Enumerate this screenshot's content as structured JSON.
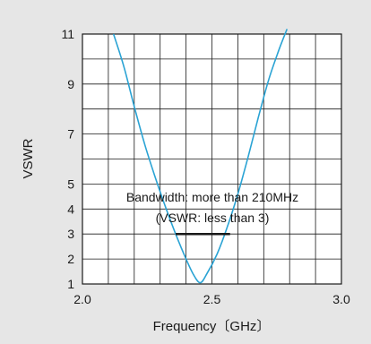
{
  "chart_data": {
    "type": "line",
    "xlabel": "Frequency〔GHz〕",
    "ylabel": "VSWR",
    "xlim": [
      2.0,
      3.0
    ],
    "ylim": [
      1,
      11
    ],
    "x_ticks": [
      "2.0",
      "2.5",
      "3.0"
    ],
    "y_ticks": [
      "1",
      "2",
      "3",
      "4",
      "5",
      "7",
      "9",
      "11"
    ],
    "grid": true,
    "series": [
      {
        "color": "#2aa3d4",
        "x": [
          2.12,
          2.16,
          2.2,
          2.24,
          2.28,
          2.32,
          2.36,
          2.4,
          2.43,
          2.455,
          2.48,
          2.52,
          2.56,
          2.6,
          2.64,
          2.68,
          2.72,
          2.76,
          2.79
        ],
        "y": [
          11.0,
          9.7,
          8.1,
          6.6,
          5.3,
          4.1,
          3.0,
          2.0,
          1.35,
          1.05,
          1.4,
          2.2,
          3.3,
          4.6,
          6.1,
          7.7,
          9.2,
          10.4,
          11.2
        ]
      }
    ],
    "annotations": {
      "line1": "Bandwidth: more than 210MHz",
      "line2": "(VSWR: less than 3)",
      "bandwidth_marker": {
        "x_start": 2.36,
        "x_end": 2.57,
        "y": 3,
        "color": "#1a1a1a"
      }
    }
  }
}
